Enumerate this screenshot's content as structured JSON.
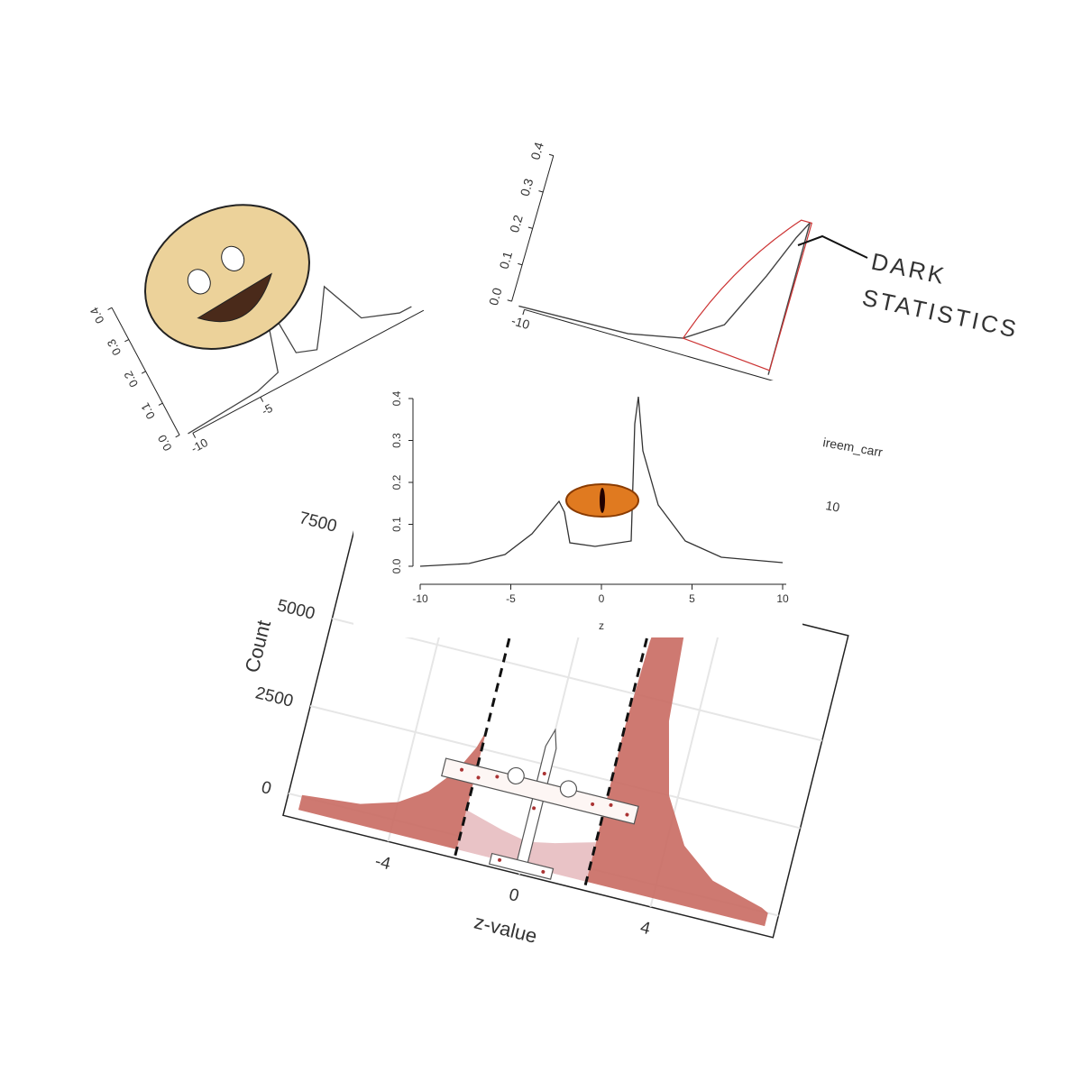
{
  "panels": [
    {
      "yticks": [
        "0.0",
        "0.1",
        "0.2",
        "0.3",
        "0.4"
      ],
      "xticks": [
        "-10",
        "-5"
      ]
    },
    {
      "yticks": [
        "0.0",
        "0.1",
        "0.2",
        "0.3",
        "0.4"
      ],
      "xticks": [
        "-10"
      ],
      "annotation": [
        "DARK",
        "STATISTICS"
      ]
    },
    {
      "yticks": [
        "0.0",
        "0.1",
        "0.2",
        "0.3",
        "0.4"
      ],
      "xticks": [
        "-10",
        "-5",
        "0",
        "5",
        "10"
      ],
      "xlabel": "z"
    },
    {
      "yticks": [
        "0",
        "2500",
        "5000",
        "7500"
      ],
      "ylabel": "Count",
      "xticks": [
        "-4",
        "0",
        "4"
      ],
      "xlabel": "z-value"
    }
  ],
  "watermark": "ireem_carr",
  "fragment_tick": "10"
}
